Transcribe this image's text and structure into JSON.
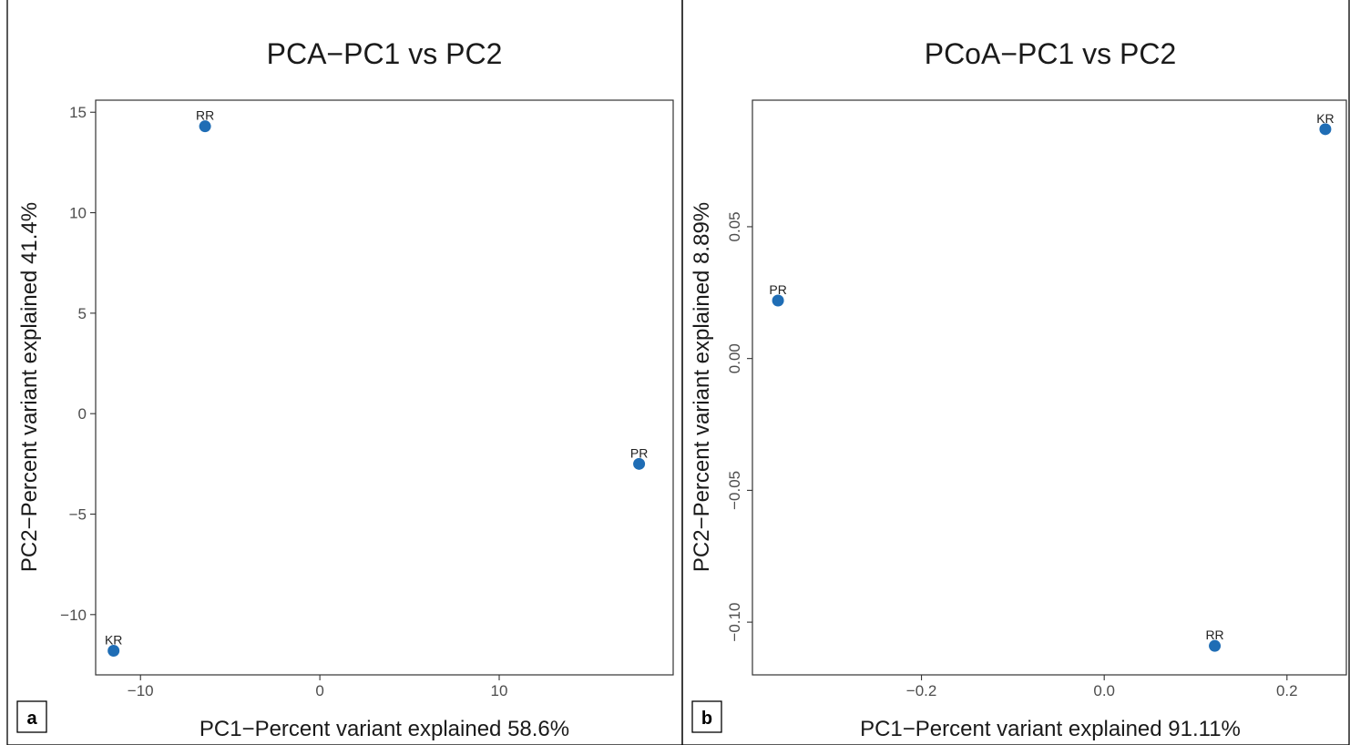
{
  "chart_data": [
    {
      "type": "scatter",
      "panel_label": "a",
      "title": "PCA−PC1 vs PC2",
      "xlabel": "PC1−Percent variant explained 58.6%",
      "ylabel": "PC2−Percent variant explained 41.4%",
      "xlim": [
        -12.5,
        19.7
      ],
      "ylim": [
        -13.0,
        15.6
      ],
      "xticks": [
        -10,
        0,
        10
      ],
      "xtick_labels": [
        "−10",
        "0",
        "10"
      ],
      "yticks": [
        -10,
        -5,
        0,
        5,
        10,
        15
      ],
      "ytick_labels": [
        "−10",
        "−5",
        "0",
        "5",
        "10",
        "15"
      ],
      "grid": false,
      "legend": "none",
      "marker_color": "#1f6db5",
      "points": [
        {
          "label": "RR",
          "x": -6.4,
          "y": 14.3
        },
        {
          "label": "PR",
          "x": 17.8,
          "y": -2.5
        },
        {
          "label": "KR",
          "x": -11.5,
          "y": -11.8
        }
      ]
    },
    {
      "type": "scatter",
      "panel_label": "b",
      "title": "PCoA−PC1 vs PC2",
      "xlabel": "PC1−Percent variant explained 91.11%",
      "ylabel": "PC2−Percent variant explained 8.89%",
      "xlim": [
        -0.385,
        0.265
      ],
      "ylim": [
        -0.12,
        0.098
      ],
      "xticks": [
        -0.2,
        0.0,
        0.2
      ],
      "xtick_labels": [
        "−0.2",
        "0.0",
        "0.2"
      ],
      "yticks": [
        -0.1,
        -0.05,
        0.0,
        0.05
      ],
      "ytick_labels": [
        "−0.10",
        "−0.05",
        "0.00",
        "0.05"
      ],
      "grid": false,
      "legend": "none",
      "marker_color": "#1f6db5",
      "points": [
        {
          "label": "KR",
          "x": 0.242,
          "y": 0.087
        },
        {
          "label": "PR",
          "x": -0.357,
          "y": 0.022
        },
        {
          "label": "RR",
          "x": 0.121,
          "y": -0.109
        }
      ]
    }
  ]
}
